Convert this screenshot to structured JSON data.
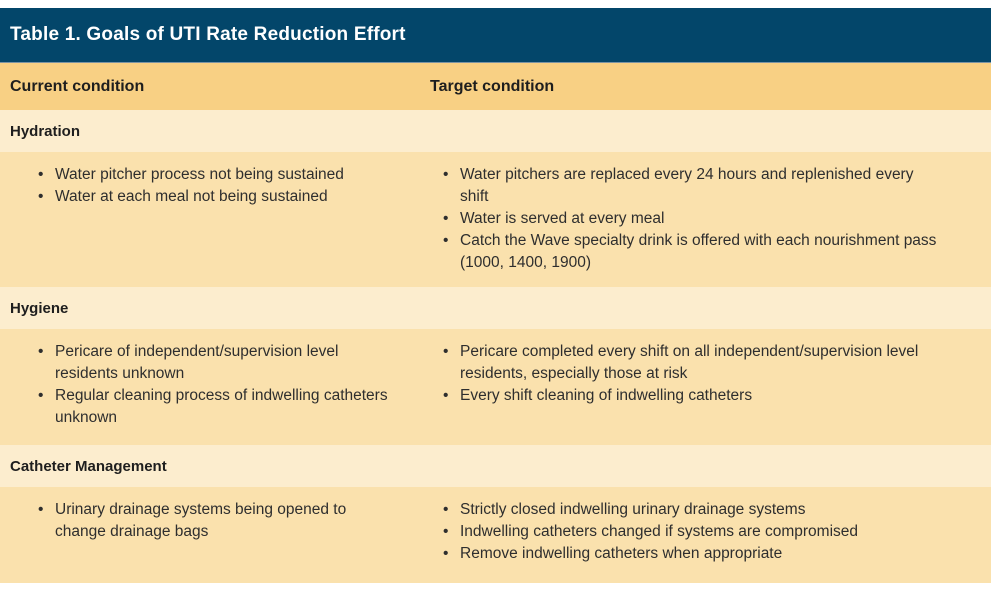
{
  "table": {
    "title": "Table 1. Goals of UTI Rate Reduction Effort",
    "columns": {
      "current": "Current condition",
      "target": "Target condition"
    },
    "sections": [
      {
        "name": "Hydration",
        "current": [
          "Water pitcher process not being sustained",
          "Water at each meal not being sustained"
        ],
        "target": [
          "Water pitchers are replaced every 24 hours and replenished every\nshift",
          "Water is served at every meal",
          "Catch the Wave specialty drink is offered with each nourishment pass\n(1000, 1400, 1900)"
        ]
      },
      {
        "name": "Hygiene",
        "current": [
          "Pericare of independent/supervision level\nresidents unknown",
          "Regular cleaning process of indwelling catheters\nunknown"
        ],
        "target": [
          "Pericare completed every shift on all independent/supervision level\nresidents, especially those at risk",
          "Every shift cleaning of indwelling catheters"
        ]
      },
      {
        "name": "Catheter Management",
        "current": [
          "Urinary drainage systems being opened to\nchange drainage bags"
        ],
        "target": [
          "Strictly closed indwelling urinary drainage systems",
          "Indwelling catheters changed if systems are compromised",
          "Remove indwelling catheters when appropriate"
        ]
      }
    ]
  },
  "colors": {
    "title_bar_bg": "#03466a",
    "title_text": "#ffffff",
    "column_header_bg": "#f8d084",
    "section_band_bg": "#fcedce",
    "bullet_row_bg": "#fae1ad",
    "heading_text": "#1e1e1e",
    "body_text": "#2e2e2e"
  }
}
